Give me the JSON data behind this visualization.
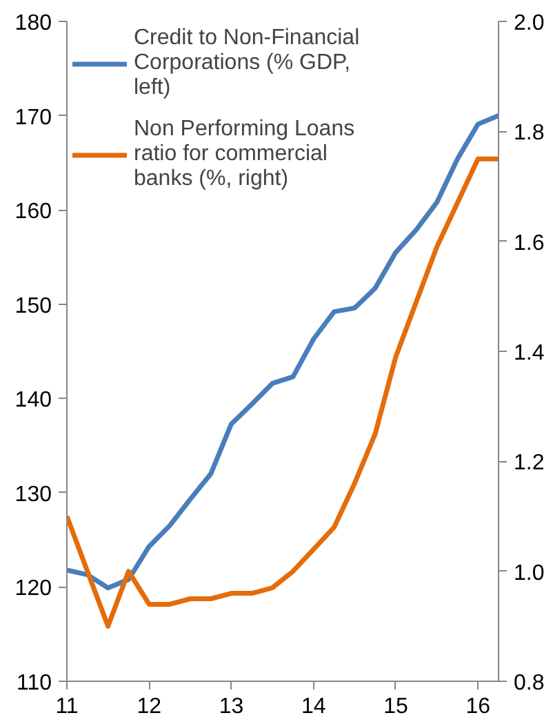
{
  "chart_data": {
    "type": "line",
    "x": [
      11.0,
      11.25,
      11.5,
      11.75,
      12.0,
      12.25,
      12.5,
      12.75,
      13.0,
      13.25,
      13.5,
      13.75,
      14.0,
      14.25,
      14.5,
      14.75,
      15.0,
      15.25,
      15.5,
      15.75,
      16.0,
      16.25
    ],
    "series": [
      {
        "name": "Credit to Non-Financial Corporations (% GDP, left)",
        "color": "#4a7ebb",
        "values": [
          121.8,
          121.3,
          119.9,
          120.8,
          124.3,
          126.5,
          129.3,
          132.0,
          137.3,
          139.4,
          141.6,
          142.3,
          146.3,
          149.2,
          149.6,
          151.7,
          155.5,
          157.9,
          160.8,
          165.4,
          169.1,
          170.0
        ]
      },
      {
        "name": "Non Performing Loans ratio for commercial banks (%, right)",
        "color": "#e46c0a",
        "axis": "y2",
        "values": [
          1.1,
          1.0,
          0.9,
          1.0,
          0.94,
          0.94,
          0.95,
          0.95,
          0.96,
          0.96,
          0.97,
          1.0,
          1.04,
          1.08,
          1.16,
          1.25,
          1.39,
          1.49,
          1.59,
          1.67,
          1.75,
          1.75
        ]
      }
    ],
    "xlim": [
      11,
      16.25
    ],
    "xticks": [
      11,
      12,
      13,
      14,
      15,
      16
    ],
    "ylim": [
      110,
      180
    ],
    "yticks": [
      110,
      120,
      130,
      140,
      150,
      160,
      170,
      180
    ],
    "y2lim": [
      0.8,
      2.0
    ],
    "y2ticks": [
      {
        "value": 0.8,
        "label": "0.8"
      },
      {
        "value": 1.0,
        "label": "1.0"
      },
      {
        "value": 1.2,
        "label": "1.2"
      },
      {
        "value": 1.4,
        "label": "1.4"
      },
      {
        "value": 1.6,
        "label": "1.6"
      },
      {
        "value": 1.8,
        "label": "1.8"
      },
      {
        "value": 2.0,
        "label": "2.0"
      }
    ],
    "grid": false,
    "legend": "top left"
  }
}
